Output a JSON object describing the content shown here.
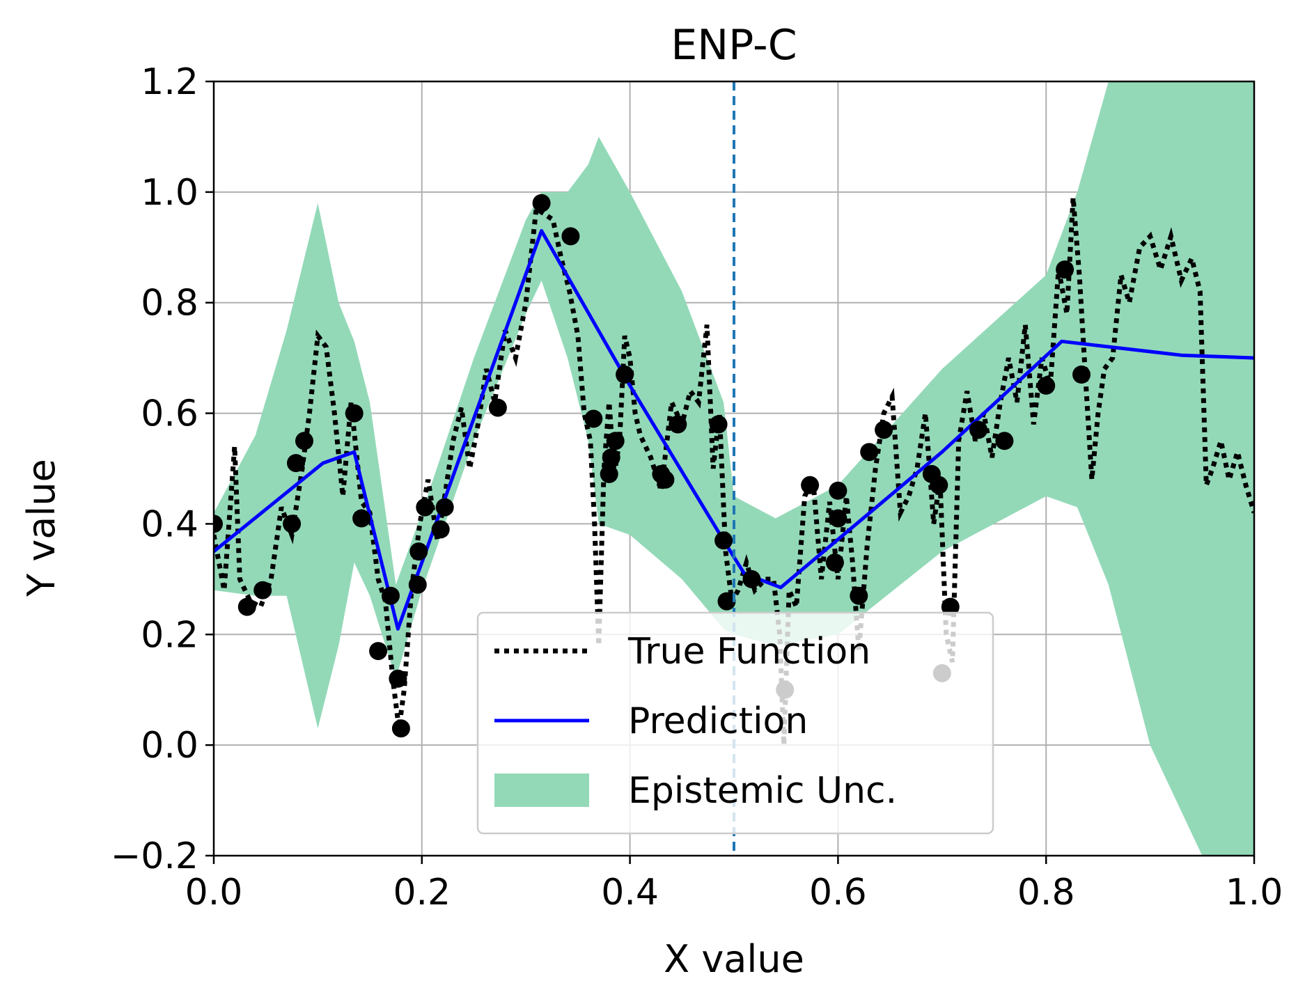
{
  "chart_data": {
    "type": "line",
    "title": "ENP-C",
    "xlabel": "X value",
    "ylabel": "Y value",
    "xlim": [
      0.0,
      1.0
    ],
    "ylim": [
      -0.2,
      1.2
    ],
    "grid": true,
    "legend_position": "bottom-center",
    "xticks": [
      0.0,
      0.2,
      0.4,
      0.6,
      0.8,
      1.0
    ],
    "xtick_labels": [
      "0.0",
      "0.2",
      "0.4",
      "0.6",
      "0.8",
      "1.0"
    ],
    "yticks": [
      -0.2,
      0.0,
      0.2,
      0.4,
      0.6,
      0.8,
      1.0,
      1.2
    ],
    "ytick_labels": [
      "−0.2",
      "0.0",
      "0.2",
      "0.4",
      "0.6",
      "0.8",
      "1.0",
      "1.2"
    ],
    "vline": {
      "x": 0.5,
      "color": "#1f77b4",
      "style": "dashed"
    },
    "legend": [
      {
        "label": "True Function",
        "style": "dotted",
        "color": "#000000"
      },
      {
        "label": "Prediction",
        "style": "solid",
        "color": "#0000ff"
      },
      {
        "label": "Epistemic Unc.",
        "style": "fill",
        "color": "#93d9b8"
      }
    ],
    "colors": {
      "true_function": "#000000",
      "prediction": "#0000ff",
      "uncertainty": "#93d9b8",
      "points": "#000000",
      "vline": "#1f77b4",
      "grid": "#b0b0b0"
    },
    "prediction": {
      "name": "Prediction",
      "x": [
        0.0,
        0.105,
        0.135,
        0.177,
        0.315,
        0.4,
        0.49,
        0.51,
        0.545,
        0.7,
        0.815,
        0.93,
        1.0
      ],
      "y": [
        0.35,
        0.51,
        0.53,
        0.21,
        0.93,
        0.65,
        0.37,
        0.31,
        0.285,
        0.53,
        0.73,
        0.705,
        0.7
      ]
    },
    "uncertainty_band": {
      "name": "Epistemic Unc.",
      "x": [
        0.0,
        0.04,
        0.07,
        0.1,
        0.12,
        0.135,
        0.15,
        0.175,
        0.2,
        0.25,
        0.3,
        0.315,
        0.34,
        0.36,
        0.37,
        0.4,
        0.45,
        0.49,
        0.5,
        0.54,
        0.6,
        0.7,
        0.8,
        0.83,
        0.86,
        0.9,
        0.95,
        1.0
      ],
      "upper": [
        0.42,
        0.56,
        0.75,
        0.98,
        0.8,
        0.73,
        0.62,
        0.29,
        0.42,
        0.7,
        0.95,
        1.0,
        1.0,
        1.05,
        1.1,
        1.0,
        0.82,
        0.62,
        0.45,
        0.41,
        0.47,
        0.68,
        0.85,
        1.0,
        1.2,
        1.2,
        1.2,
        1.2
      ],
      "lower": [
        0.28,
        0.27,
        0.27,
        0.03,
        0.18,
        0.33,
        0.27,
        0.12,
        0.28,
        0.55,
        0.78,
        0.84,
        0.7,
        0.55,
        0.4,
        0.38,
        0.3,
        0.21,
        0.2,
        0.18,
        0.2,
        0.35,
        0.45,
        0.43,
        0.29,
        0.0,
        -0.2,
        -0.2
      ]
    },
    "true_function": {
      "name": "True Function",
      "x": [
        0.0,
        0.01,
        0.02,
        0.025,
        0.035,
        0.045,
        0.055,
        0.065,
        0.075,
        0.085,
        0.092,
        0.1,
        0.108,
        0.116,
        0.124,
        0.132,
        0.142,
        0.15,
        0.158,
        0.165,
        0.172,
        0.178,
        0.183,
        0.19,
        0.198,
        0.206,
        0.215,
        0.222,
        0.23,
        0.238,
        0.246,
        0.254,
        0.262,
        0.27,
        0.28,
        0.29,
        0.3,
        0.31,
        0.318,
        0.326,
        0.334,
        0.342,
        0.35,
        0.356,
        0.362,
        0.366,
        0.37,
        0.375,
        0.38,
        0.385,
        0.39,
        0.395,
        0.4,
        0.405,
        0.41,
        0.42,
        0.43,
        0.44,
        0.45,
        0.458,
        0.466,
        0.474,
        0.48,
        0.486,
        0.492,
        0.498,
        0.504,
        0.512,
        0.52,
        0.53,
        0.538,
        0.544,
        0.548,
        0.553,
        0.56,
        0.568,
        0.576,
        0.584,
        0.592,
        0.6,
        0.608,
        0.614,
        0.62,
        0.628,
        0.636,
        0.644,
        0.652,
        0.66,
        0.668,
        0.676,
        0.684,
        0.692,
        0.698,
        0.704,
        0.71,
        0.716,
        0.724,
        0.732,
        0.74,
        0.748,
        0.756,
        0.764,
        0.772,
        0.78,
        0.788,
        0.796,
        0.804,
        0.812,
        0.82,
        0.826,
        0.832,
        0.838,
        0.844,
        0.85,
        0.856,
        0.864,
        0.872,
        0.88,
        0.89,
        0.9,
        0.91,
        0.92,
        0.93,
        0.94,
        0.948,
        0.954,
        0.96,
        0.968,
        0.976,
        0.984,
        0.992,
        1.0
      ],
      "y": [
        0.38,
        0.28,
        0.54,
        0.3,
        0.26,
        0.25,
        0.3,
        0.43,
        0.38,
        0.5,
        0.6,
        0.74,
        0.72,
        0.6,
        0.45,
        0.62,
        0.44,
        0.42,
        0.3,
        0.26,
        0.12,
        0.03,
        0.1,
        0.28,
        0.4,
        0.48,
        0.37,
        0.45,
        0.55,
        0.61,
        0.5,
        0.58,
        0.68,
        0.62,
        0.75,
        0.7,
        0.8,
        0.97,
        0.96,
        0.95,
        0.88,
        0.82,
        0.74,
        0.6,
        0.55,
        0.4,
        0.18,
        0.5,
        0.62,
        0.49,
        0.55,
        0.74,
        0.7,
        0.6,
        0.56,
        0.52,
        0.46,
        0.62,
        0.58,
        0.64,
        0.62,
        0.76,
        0.5,
        0.6,
        0.35,
        0.26,
        0.28,
        0.33,
        0.28,
        0.3,
        0.3,
        0.2,
        0.0,
        0.28,
        0.25,
        0.45,
        0.48,
        0.3,
        0.44,
        0.3,
        0.45,
        0.33,
        0.17,
        0.36,
        0.5,
        0.6,
        0.63,
        0.42,
        0.45,
        0.5,
        0.6,
        0.4,
        0.48,
        0.2,
        0.15,
        0.55,
        0.64,
        0.55,
        0.6,
        0.52,
        0.62,
        0.7,
        0.62,
        0.76,
        0.58,
        0.7,
        0.65,
        0.86,
        0.78,
        0.99,
        0.85,
        0.66,
        0.48,
        0.6,
        0.68,
        0.7,
        0.85,
        0.8,
        0.9,
        0.92,
        0.86,
        0.92,
        0.84,
        0.88,
        0.82,
        0.47,
        0.5,
        0.55,
        0.48,
        0.53,
        0.47,
        0.42
      ]
    },
    "observed_points": {
      "x": [
        0.0,
        0.032,
        0.047,
        0.075,
        0.079,
        0.087,
        0.135,
        0.142,
        0.158,
        0.17,
        0.177,
        0.18,
        0.196,
        0.197,
        0.203,
        0.218,
        0.222,
        0.273,
        0.315,
        0.343,
        0.365,
        0.38,
        0.382,
        0.386,
        0.395,
        0.43,
        0.434,
        0.446,
        0.485,
        0.49,
        0.493,
        0.517,
        0.549,
        0.573,
        0.597,
        0.6,
        0.6,
        0.62,
        0.63,
        0.644,
        0.69,
        0.697,
        0.7,
        0.708,
        0.735,
        0.76,
        0.8,
        0.818,
        0.834
      ],
      "y": [
        0.4,
        0.25,
        0.28,
        0.4,
        0.51,
        0.55,
        0.6,
        0.41,
        0.17,
        0.27,
        0.12,
        0.03,
        0.29,
        0.35,
        0.43,
        0.39,
        0.43,
        0.61,
        0.98,
        0.92,
        0.59,
        0.49,
        0.52,
        0.55,
        0.67,
        0.49,
        0.48,
        0.58,
        0.58,
        0.37,
        0.26,
        0.3,
        0.1,
        0.47,
        0.33,
        0.41,
        0.46,
        0.27,
        0.53,
        0.57,
        0.49,
        0.47,
        0.13,
        0.25,
        0.57,
        0.55,
        0.65,
        0.86,
        0.67
      ]
    }
  }
}
